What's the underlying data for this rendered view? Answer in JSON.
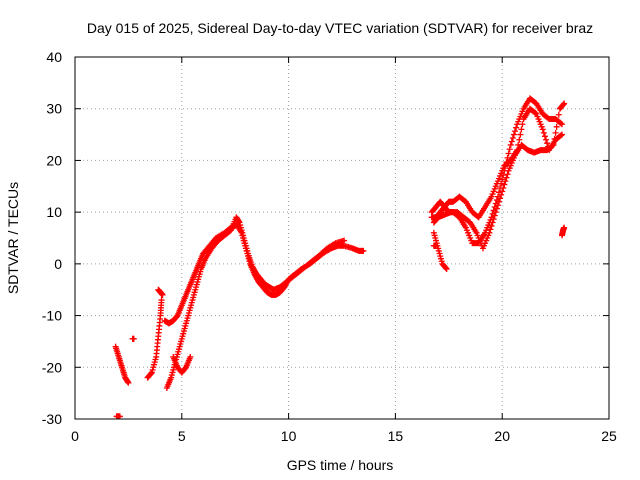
{
  "chart_data": {
    "type": "scatter",
    "title": "Day 015 of 2025, Sidereal Day-to-day VTEC variation (SDTVAR) for receiver braz",
    "xlabel": "GPS time / hours",
    "ylabel": "SDTVAR / TECUs",
    "xlim": [
      0,
      25
    ],
    "ylim": [
      -30,
      40
    ],
    "x_ticks": [
      0,
      5,
      10,
      15,
      20,
      25
    ],
    "y_ticks": [
      -30,
      -20,
      -10,
      0,
      10,
      20,
      30,
      40
    ],
    "x_tick_labels": [
      "0",
      "5",
      "10",
      "15",
      "20",
      "25"
    ],
    "y_tick_labels": [
      "-30",
      "-20",
      "-10",
      "0",
      "10",
      "20",
      "30",
      "40"
    ],
    "grid": true,
    "marker": "plus",
    "color": "#ff0000",
    "series": [
      {
        "name": "trace-a",
        "x": [
          1.9,
          2.05,
          2.2,
          2.35,
          2.5
        ],
        "y": [
          -16,
          -18,
          -20,
          -22,
          -23
        ]
      },
      {
        "name": "trace-b",
        "x": [
          1.95,
          2.1
        ],
        "y": [
          -29.5,
          -29.5
        ]
      },
      {
        "name": "trace-c",
        "x": [
          2.7,
          2.75
        ],
        "y": [
          -14.5,
          -14.5
        ]
      },
      {
        "name": "trace-d",
        "x": [
          3.4,
          3.6,
          3.8,
          3.9,
          4.0,
          4.05
        ],
        "y": [
          -22,
          -21,
          -18,
          -14,
          -10,
          -7
        ]
      },
      {
        "name": "trace-e",
        "x": [
          3.9,
          4.0,
          4.1
        ],
        "y": [
          -5,
          -5.5,
          -6
        ]
      },
      {
        "name": "trace-f",
        "x": [
          4.2,
          4.4,
          4.6,
          4.8,
          5.0,
          5.2,
          5.4,
          5.6,
          5.8,
          6.0,
          6.3,
          6.6,
          7.0,
          7.3,
          7.6,
          7.8,
          8.0,
          8.2,
          8.4,
          8.6,
          8.8,
          9.0,
          9.2,
          9.4,
          9.6,
          9.8,
          10.0,
          10.3,
          10.6,
          11.0,
          11.3,
          11.6,
          12.0,
          12.3,
          12.6,
          13.0,
          13.3,
          13.5
        ],
        "y": [
          -11,
          -11.5,
          -11,
          -10,
          -8,
          -6,
          -4,
          -2,
          0,
          2,
          3.5,
          5,
          6,
          7,
          7.5,
          6,
          3,
          0,
          -2,
          -3.5,
          -4.5,
          -5.5,
          -6,
          -6,
          -5.5,
          -4.5,
          -3,
          -2,
          -1,
          0,
          1,
          2,
          3,
          3.5,
          3.5,
          3,
          2.5,
          2.5
        ]
      },
      {
        "name": "trace-g",
        "x": [
          4.3,
          4.5,
          4.7,
          4.9,
          5.1,
          5.3,
          5.5,
          5.7,
          5.9,
          6.1,
          6.4,
          6.7,
          7.0,
          7.3,
          7.55,
          7.7,
          7.9,
          8.1,
          8.3,
          8.5,
          8.7,
          8.9,
          9.1,
          9.3,
          9.6,
          9.9,
          10.2,
          10.5,
          10.8,
          11.1,
          11.4,
          11.8,
          12.2,
          12.6
        ],
        "y": [
          -24,
          -22,
          -19,
          -16,
          -13,
          -10,
          -7,
          -4,
          -1,
          1,
          3,
          4.5,
          5.5,
          6.5,
          9,
          8,
          5,
          2,
          -0.5,
          -2,
          -3,
          -4,
          -4.5,
          -5,
          -4.5,
          -3.5,
          -2.5,
          -1.5,
          -0.5,
          0.5,
          1.5,
          3,
          4,
          4.5
        ]
      },
      {
        "name": "trace-h",
        "x": [
          4.6,
          4.8,
          5.0,
          5.2,
          5.4
        ],
        "y": [
          -18,
          -20,
          -21,
          -20,
          -18
        ]
      },
      {
        "name": "trace-i",
        "x": [
          16.7,
          16.9,
          17.1,
          17.3,
          17.5,
          17.7,
          18.0,
          18.3,
          18.6,
          18.9,
          19.2,
          19.5,
          19.8,
          20.1,
          20.4,
          20.7,
          21.0,
          21.3,
          21.6,
          21.9,
          22.2,
          22.5,
          22.8
        ],
        "y": [
          10,
          11,
          12,
          11,
          10,
          10,
          9,
          7,
          4,
          4,
          6,
          9,
          13,
          18,
          23,
          27,
          30,
          32,
          31,
          29,
          28,
          28,
          27
        ]
      },
      {
        "name": "trace-j",
        "x": [
          16.7,
          16.9,
          17.1,
          17.3,
          17.5,
          17.7,
          18.0,
          18.3,
          18.6,
          18.9,
          19.2,
          19.5,
          19.8,
          20.1,
          20.4,
          20.7,
          21.0,
          21.3,
          21.6,
          21.9,
          22.2,
          22.5,
          22.8
        ],
        "y": [
          9,
          9,
          10,
          11,
          12,
          12,
          13,
          12,
          10,
          9,
          11,
          13,
          16,
          19,
          20,
          22,
          28,
          30,
          29,
          26,
          22,
          24,
          25
        ]
      },
      {
        "name": "trace-k",
        "x": [
          16.8,
          17.0,
          17.2,
          17.4
        ],
        "y": [
          6,
          3,
          0,
          -1
        ]
      },
      {
        "name": "trace-l",
        "x": [
          16.8,
          17.0,
          17.3,
          17.6,
          17.9,
          18.2,
          18.5,
          18.8,
          19.1,
          19.4,
          19.7,
          20.0,
          20.3,
          20.6,
          20.9,
          21.2,
          21.5,
          21.8,
          22.1,
          22.4,
          22.7,
          22.9
        ],
        "y": [
          8,
          9,
          9.5,
          10,
          10,
          9,
          8,
          6,
          3,
          6,
          10,
          14,
          18,
          21,
          23,
          22,
          21.5,
          22,
          22,
          23,
          30,
          31
        ]
      },
      {
        "name": "trace-m",
        "x": [
          16.8,
          16.9
        ],
        "y": [
          3.5,
          3.5
        ]
      },
      {
        "name": "trace-n",
        "x": [
          22.8,
          22.85,
          22.9
        ],
        "y": [
          5.5,
          6.5,
          7
        ]
      }
    ]
  }
}
